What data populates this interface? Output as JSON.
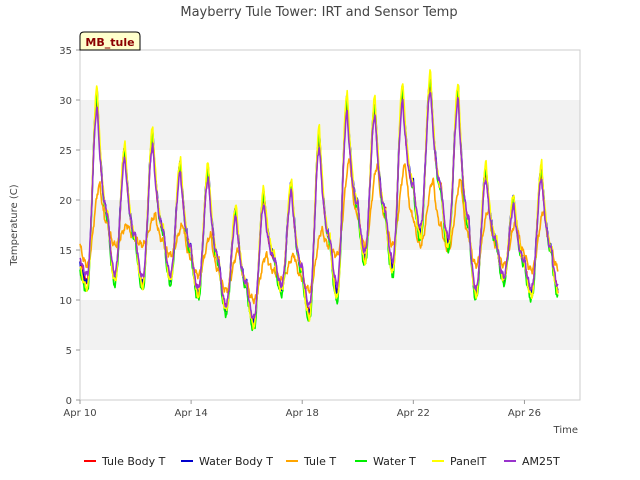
{
  "chart_data": {
    "type": "line",
    "title": "Mayberry Tule Tower: IRT and Sensor Temp",
    "badge": "MB_tule",
    "xlabel": "Time",
    "ylabel": "Temperature (C)",
    "ylim": [
      0,
      35
    ],
    "yticks": [
      0,
      5,
      10,
      15,
      20,
      25,
      30,
      35
    ],
    "xlim": [
      0,
      18
    ],
    "xticks": [
      {
        "value": 0,
        "label": "Apr 10"
      },
      {
        "value": 4,
        "label": "Apr 14"
      },
      {
        "value": 8,
        "label": "Apr 18"
      },
      {
        "value": 12,
        "label": "Apr 22"
      },
      {
        "value": 16,
        "label": "Apr 26"
      }
    ],
    "x_units": "days since Apr 10",
    "bands": [
      [
        5,
        10
      ],
      [
        15,
        20
      ],
      [
        25,
        30
      ]
    ],
    "legend_position": "bottom",
    "day_values": {
      "sensor_max": [
        30.5,
        25.0,
        26.5,
        23.5,
        23.0,
        19.0,
        20.5,
        21.5,
        26.5,
        30.0,
        29.5,
        31.0,
        32.0,
        31.0,
        23.0,
        20.0,
        23.0
      ],
      "sensor_min": [
        11.5,
        12.0,
        11.5,
        12.0,
        10.5,
        9.0,
        7.5,
        11.0,
        8.5,
        10.5,
        14.0,
        13.0,
        16.5,
        15.5,
        10.5,
        12.0,
        10.5
      ],
      "tule_max": [
        21.5,
        17.5,
        18.5,
        17.5,
        16.5,
        15.0,
        14.5,
        14.5,
        17.0,
        24.0,
        23.5,
        23.5,
        22.0,
        22.0,
        19.0,
        18.0,
        19.0
      ],
      "tule_min": [
        13.5,
        15.5,
        15.5,
        14.5,
        12.5,
        11.0,
        10.0,
        12.0,
        11.0,
        14.5,
        15.5,
        15.5,
        15.5,
        15.0,
        13.5,
        13.5,
        13.0
      ]
    },
    "series": [
      {
        "name": "Tule Body T",
        "color": "#ff0000",
        "base": "sensor",
        "amp": 0.96,
        "offset": 0.0
      },
      {
        "name": "Water Body T",
        "color": "#0000cc",
        "base": "sensor",
        "amp": 1.0,
        "offset": 0.2
      },
      {
        "name": "Tule T",
        "color": "#ffa500",
        "base": "tule",
        "amp": 1.0,
        "offset": 0.0
      },
      {
        "name": "Water T",
        "color": "#00ee00",
        "base": "sensor",
        "amp": 1.04,
        "offset": -0.2
      },
      {
        "name": "PanelT",
        "color": "#ffff00",
        "base": "sensor",
        "amp": 1.06,
        "offset": 0.3
      },
      {
        "name": "AM25T",
        "color": "#9933cc",
        "base": "sensor",
        "amp": 0.88,
        "offset": -0.1
      }
    ]
  }
}
